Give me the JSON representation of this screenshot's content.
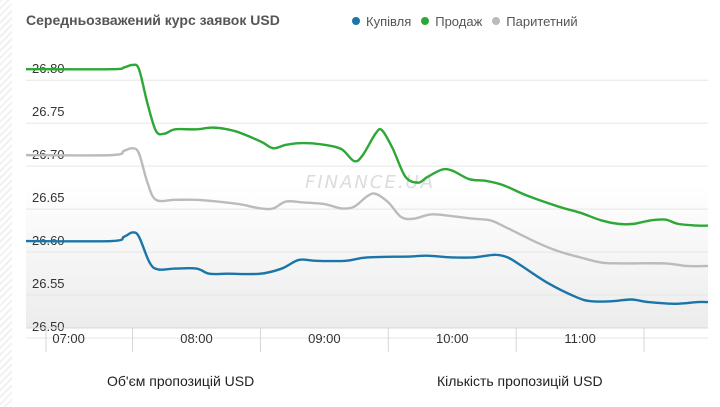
{
  "chart_data": {
    "type": "line",
    "title": "Середньозважений курс заявок USD",
    "legend_placement": "top-right",
    "grid": true,
    "y_ticks": [
      "26.80",
      "26.75",
      "26.70",
      "26.65",
      "26.60",
      "26.55",
      "26.50"
    ],
    "x_ticks": [
      "07:00",
      "08:00",
      "09:00",
      "10:00",
      "11:00"
    ],
    "ylim": [
      26.5,
      26.82
    ],
    "series": [
      {
        "name": "Купівля",
        "color": "#1a75a8",
        "points": [
          [
            "06:40",
            26.6
          ],
          [
            "07:20",
            26.6
          ],
          [
            "07:26",
            26.605
          ],
          [
            "07:30",
            26.61
          ],
          [
            "07:33",
            26.605
          ],
          [
            "07:38",
            26.575
          ],
          [
            "07:42",
            26.567
          ],
          [
            "07:50",
            26.568
          ],
          [
            "08:00",
            26.568
          ],
          [
            "08:06",
            26.562
          ],
          [
            "08:15",
            26.562
          ],
          [
            "08:30",
            26.562
          ],
          [
            "08:40",
            26.568
          ],
          [
            "08:48",
            26.578
          ],
          [
            "08:56",
            26.577
          ],
          [
            "09:10",
            26.577
          ],
          [
            "09:20",
            26.581
          ],
          [
            "09:40",
            26.582
          ],
          [
            "09:48",
            26.583
          ],
          [
            "10:00",
            26.581
          ],
          [
            "10:10",
            26.581
          ],
          [
            "10:20",
            26.584
          ],
          [
            "10:26",
            26.581
          ],
          [
            "10:32",
            26.572
          ],
          [
            "10:45",
            26.551
          ],
          [
            "10:58",
            26.535
          ],
          [
            "11:05",
            26.53
          ],
          [
            "11:15",
            26.53
          ],
          [
            "11:24",
            26.532
          ],
          [
            "11:32",
            26.529
          ],
          [
            "11:45",
            26.527
          ],
          [
            "11:55",
            26.529
          ],
          [
            "12:00",
            26.529
          ]
        ]
      },
      {
        "name": "Продаж",
        "color": "#2da836",
        "points": [
          [
            "06:40",
            26.8
          ],
          [
            "07:20",
            26.8
          ],
          [
            "07:26",
            26.802
          ],
          [
            "07:30",
            26.805
          ],
          [
            "07:33",
            26.8
          ],
          [
            "07:37",
            26.76
          ],
          [
            "07:41",
            26.728
          ],
          [
            "07:45",
            26.725
          ],
          [
            "07:50",
            26.73
          ],
          [
            "08:00",
            26.73
          ],
          [
            "08:08",
            26.732
          ],
          [
            "08:18",
            26.728
          ],
          [
            "08:30",
            26.716
          ],
          [
            "08:36",
            26.708
          ],
          [
            "08:42",
            26.712
          ],
          [
            "08:50",
            26.714
          ],
          [
            "09:00",
            26.712
          ],
          [
            "09:08",
            26.707
          ],
          [
            "09:14",
            26.693
          ],
          [
            "09:18",
            26.7
          ],
          [
            "09:24",
            26.725
          ],
          [
            "09:27",
            26.729
          ],
          [
            "09:32",
            26.708
          ],
          [
            "09:38",
            26.675
          ],
          [
            "09:44",
            26.668
          ],
          [
            "09:48",
            26.674
          ],
          [
            "09:55",
            26.683
          ],
          [
            "10:00",
            26.682
          ],
          [
            "10:08",
            26.672
          ],
          [
            "10:16",
            26.67
          ],
          [
            "10:24",
            26.665
          ],
          [
            "10:35",
            26.653
          ],
          [
            "10:50",
            26.64
          ],
          [
            "11:00",
            26.633
          ],
          [
            "11:10",
            26.624
          ],
          [
            "11:18",
            26.62
          ],
          [
            "11:25",
            26.62
          ],
          [
            "11:33",
            26.624
          ],
          [
            "11:40",
            26.625
          ],
          [
            "11:46",
            26.62
          ],
          [
            "11:55",
            26.618
          ],
          [
            "12:00",
            26.618
          ]
        ]
      },
      {
        "name": "Паритетний",
        "color": "#bbbbbb",
        "points": [
          [
            "06:40",
            26.7
          ],
          [
            "07:20",
            26.7
          ],
          [
            "07:26",
            26.705
          ],
          [
            "07:30",
            26.708
          ],
          [
            "07:33",
            26.702
          ],
          [
            "07:37",
            26.668
          ],
          [
            "07:41",
            26.648
          ],
          [
            "07:50",
            26.648
          ],
          [
            "08:00",
            26.648
          ],
          [
            "08:10",
            26.646
          ],
          [
            "08:20",
            26.643
          ],
          [
            "08:30",
            26.638
          ],
          [
            "08:36",
            26.638
          ],
          [
            "08:42",
            26.646
          ],
          [
            "08:50",
            26.645
          ],
          [
            "09:00",
            26.643
          ],
          [
            "09:08",
            26.638
          ],
          [
            "09:14",
            26.64
          ],
          [
            "09:20",
            26.652
          ],
          [
            "09:24",
            26.655
          ],
          [
            "09:30",
            26.645
          ],
          [
            "09:36",
            26.628
          ],
          [
            "09:42",
            26.626
          ],
          [
            "09:50",
            26.631
          ],
          [
            "10:00",
            26.629
          ],
          [
            "10:10",
            26.626
          ],
          [
            "10:18",
            26.624
          ],
          [
            "10:26",
            26.615
          ],
          [
            "10:40",
            26.598
          ],
          [
            "10:50",
            26.588
          ],
          [
            "11:00",
            26.581
          ],
          [
            "11:10",
            26.575
          ],
          [
            "11:20",
            26.574
          ],
          [
            "11:40",
            26.574
          ],
          [
            "11:50",
            26.571
          ],
          [
            "12:00",
            26.571
          ]
        ]
      }
    ]
  },
  "watermark": "FINANCE.UA",
  "footer": {
    "volume_link": "Об'єм пропозицій USD",
    "count_link": "Кількість пропозицій USD"
  }
}
